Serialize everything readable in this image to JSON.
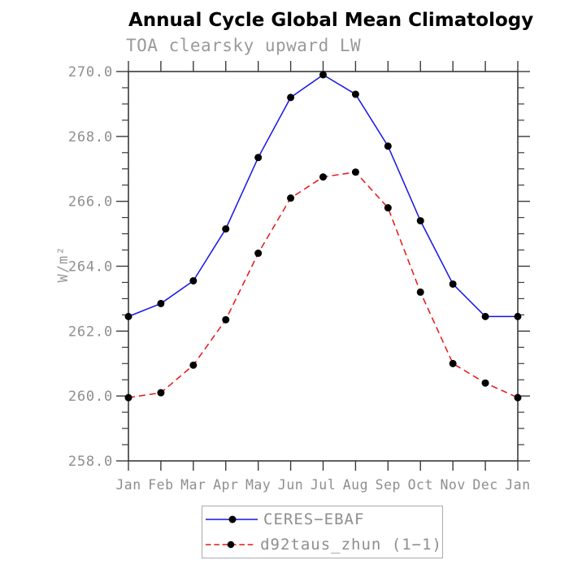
{
  "chart_data": {
    "type": "line",
    "title": "Annual Cycle Global Mean Climatology",
    "subtitle": "TOA clearsky upward LW",
    "ylabel": "W/m²",
    "xlabel": "",
    "categories": [
      "Jan",
      "Feb",
      "Mar",
      "Apr",
      "May",
      "Jun",
      "Jul",
      "Aug",
      "Sep",
      "Oct",
      "Nov",
      "Dec",
      "Jan"
    ],
    "ylim": [
      258.0,
      270.0
    ],
    "yticks": [
      258.0,
      260.0,
      262.0,
      264.0,
      266.0,
      268.0,
      270.0
    ],
    "y_minor_step": 0.5,
    "grid": false,
    "legend_position": "bottom-center",
    "series": [
      {
        "name": "CERES−EBAF",
        "color": "#1414e6",
        "line_style": "solid",
        "marker": "circle",
        "marker_color": "#000000",
        "values": [
          262.45,
          262.85,
          263.55,
          265.15,
          267.35,
          269.2,
          269.9,
          269.3,
          267.7,
          265.4,
          263.45,
          262.45,
          262.45
        ]
      },
      {
        "name": "d92taus_zhun (1−1)",
        "color": "#e81414",
        "line_style": "dashed",
        "marker": "circle",
        "marker_color": "#000000",
        "values": [
          259.95,
          260.1,
          260.95,
          262.35,
          264.4,
          266.1,
          266.75,
          266.9,
          265.8,
          263.2,
          261.0,
          260.4,
          259.95
        ]
      }
    ],
    "axis_color": "#3a3a3a",
    "tick_label_color": "#8e8e8e"
  }
}
